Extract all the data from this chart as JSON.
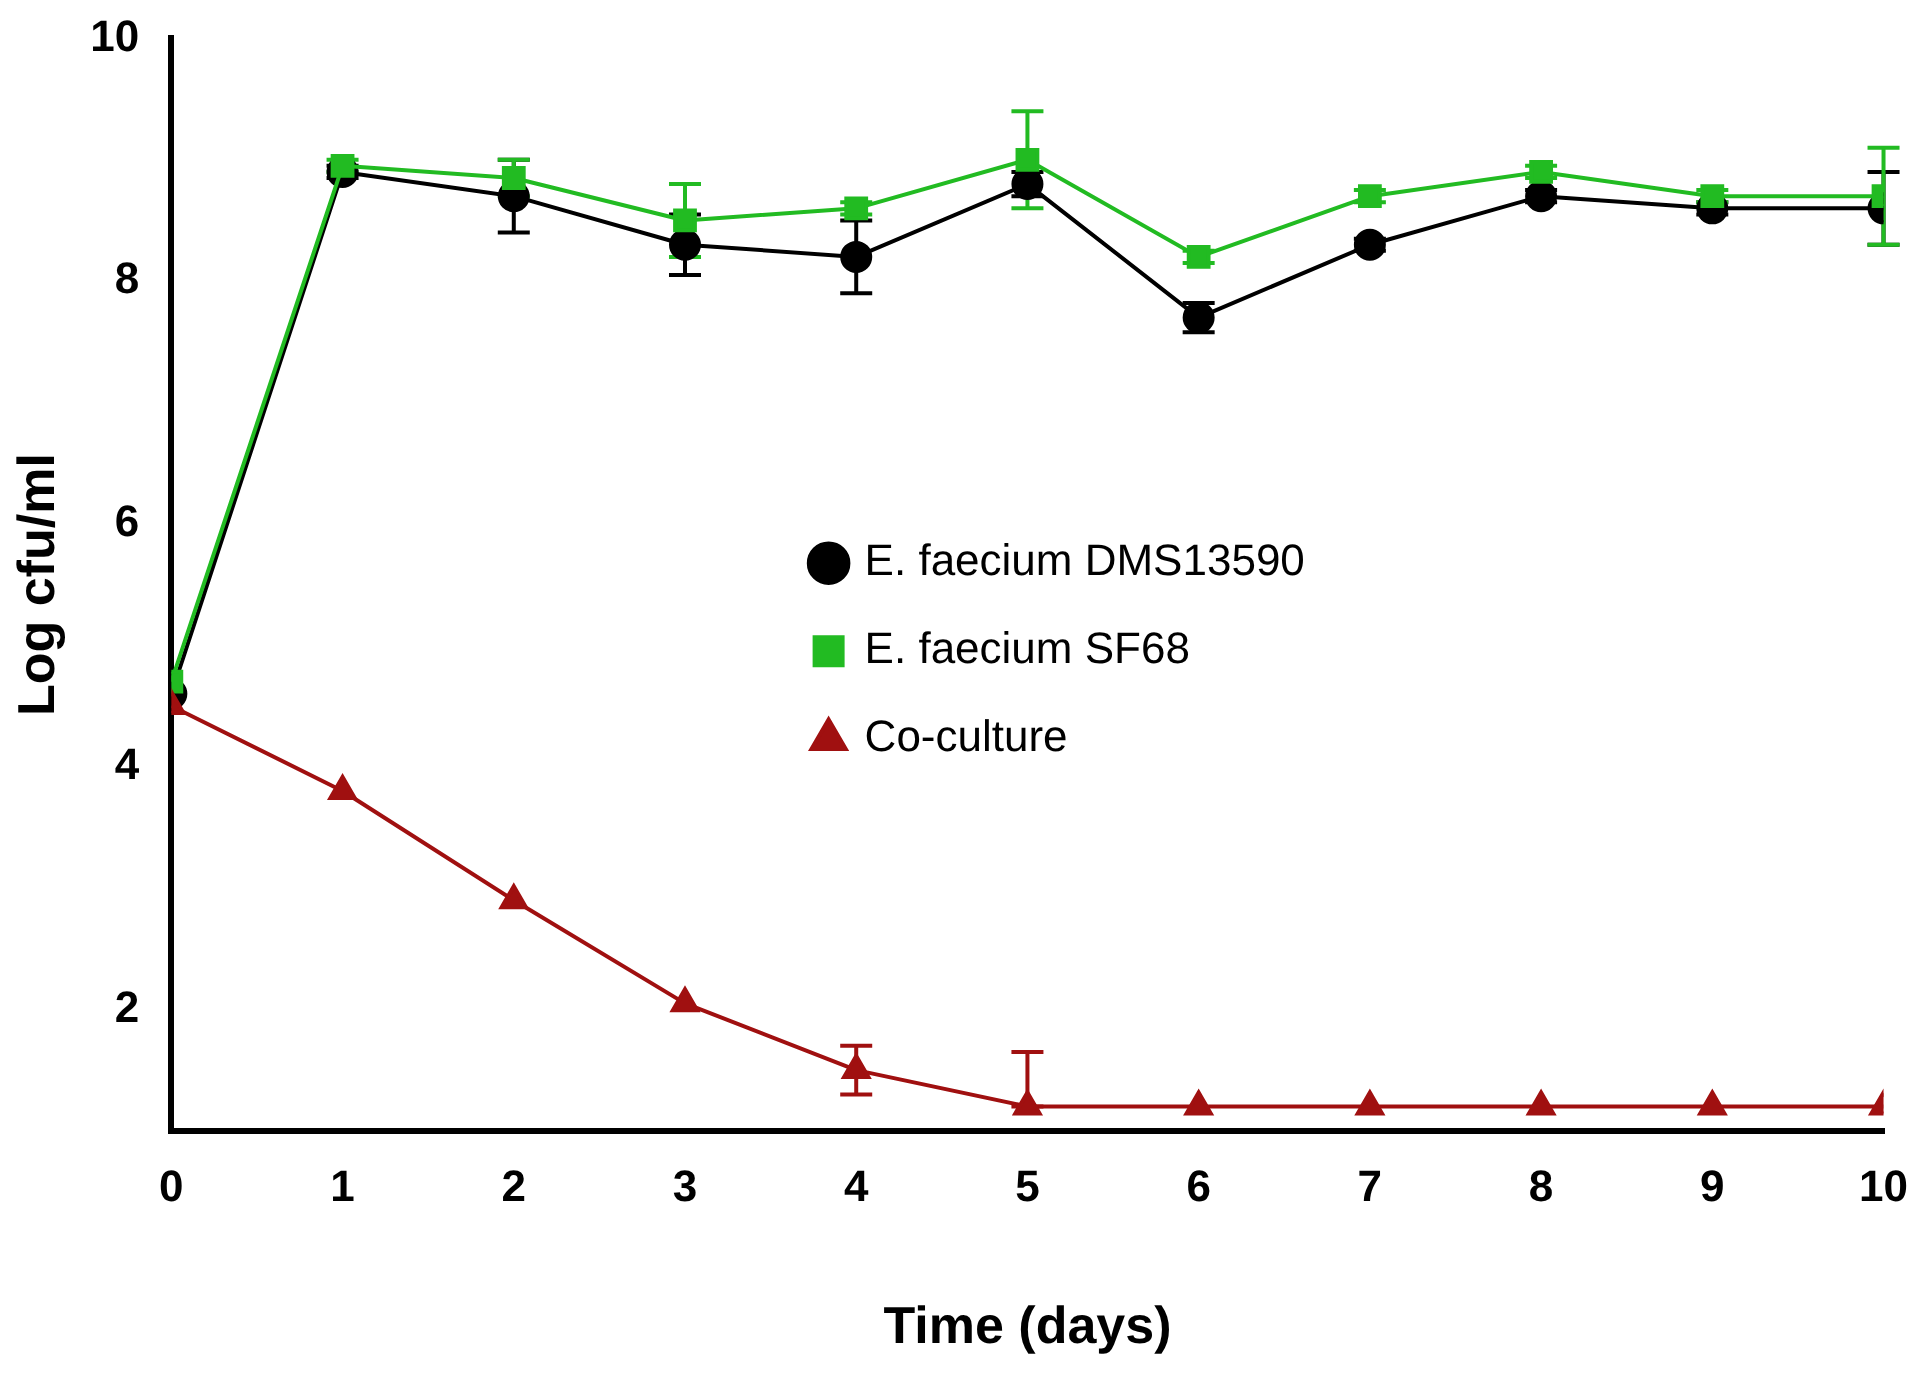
{
  "chart_data": {
    "type": "line",
    "xlabel": "Time (days)",
    "ylabel": "Log cfu/ml",
    "x": [
      0,
      1,
      2,
      3,
      4,
      5,
      6,
      7,
      8,
      9,
      10
    ],
    "series": [
      {
        "name": "E. faecium DMS13590",
        "color": "#000000",
        "marker": "circle",
        "values": [
          4.6,
          8.9,
          8.7,
          8.3,
          8.2,
          8.8,
          7.7,
          8.3,
          8.7,
          8.6,
          8.6
        ],
        "errors": [
          null,
          0.05,
          0.3,
          0.25,
          0.3,
          0.1,
          0.12,
          0.05,
          0.05,
          0.05,
          0.3
        ]
      },
      {
        "name": "E. faecium SF68",
        "color": "#22bb22",
        "marker": "square",
        "values": [
          4.7,
          8.95,
          8.85,
          8.5,
          8.6,
          9.0,
          8.2,
          8.7,
          8.9,
          8.7,
          8.7
        ],
        "errors": [
          null,
          0.05,
          0.15,
          0.3,
          0.05,
          0.4,
          0.05,
          0.05,
          0.05,
          0.05,
          0.4
        ]
      },
      {
        "name": "Co-culture",
        "color": "#a01010",
        "marker": "triangle",
        "values": [
          4.5,
          3.8,
          2.9,
          2.05,
          1.5,
          1.2,
          1.2,
          1.2,
          1.2,
          1.2,
          1.2
        ],
        "errors": [
          null,
          null,
          null,
          null,
          [
            1.3,
            1.7
          ],
          [
            1.2,
            1.65
          ],
          null,
          null,
          null,
          null,
          null
        ]
      }
    ],
    "xlim": [
      0,
      10
    ],
    "xticks": [
      0,
      1,
      2,
      3,
      4,
      5,
      6,
      7,
      8,
      9,
      10
    ],
    "ylim": [
      1,
      10
    ],
    "yticks": [
      2,
      4,
      6,
      8,
      10
    ],
    "grid": false,
    "legend": "center",
    "line_style": "solid"
  }
}
